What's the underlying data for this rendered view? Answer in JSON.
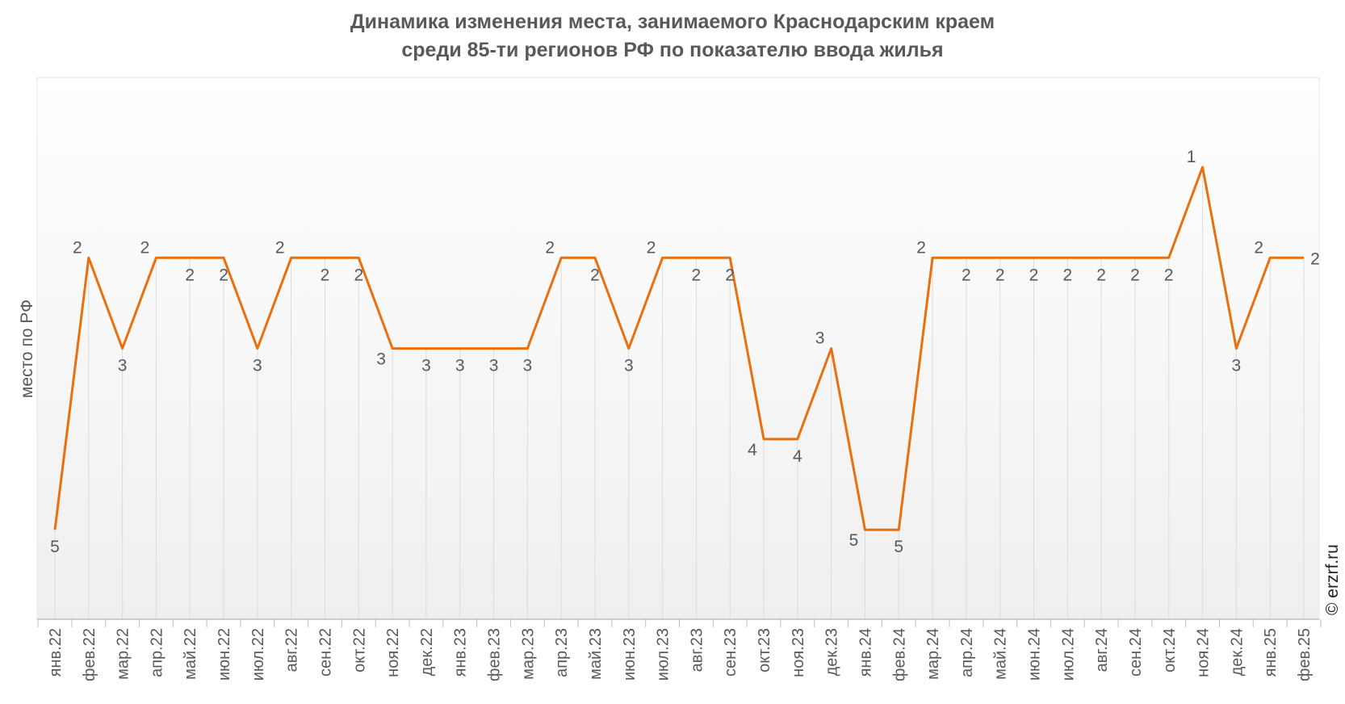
{
  "chart_data": {
    "type": "line",
    "title_line1": "Динамика изменения места, занимаемого Краснодарским краем",
    "title_line2": "среди 85-ти регионов РФ по показателю ввода жилья",
    "ylabel": "место по РФ",
    "xlabel": "",
    "ylim": [
      0.1,
      5.9
    ],
    "y_inverted": true,
    "grid": "vertical",
    "categories": [
      "янв.22",
      "фев.22",
      "мар.22",
      "апр.22",
      "май.22",
      "июн.22",
      "июл.22",
      "авг.22",
      "сен.22",
      "окт.22",
      "ноя.22",
      "дек.22",
      "янв.23",
      "фев.23",
      "мар.23",
      "апр.23",
      "май.23",
      "июн.23",
      "июл.23",
      "авг.23",
      "сен.23",
      "окт.23",
      "ноя.23",
      "дек.23",
      "янв.24",
      "фев.24",
      "мар.24",
      "апр.24",
      "май.24",
      "июн.24",
      "июл.24",
      "авг.24",
      "сен.24",
      "окт.24",
      "ноя.24",
      "дек.24",
      "янв.25",
      "фев.25"
    ],
    "series": [
      {
        "name": "место по РФ",
        "color": "#e8700e",
        "values": [
          5,
          2,
          3,
          2,
          2,
          2,
          3,
          2,
          2,
          2,
          3,
          3,
          3,
          3,
          3,
          2,
          2,
          3,
          2,
          2,
          2,
          4,
          4,
          3,
          5,
          5,
          2,
          2,
          2,
          2,
          2,
          2,
          2,
          2,
          1,
          3,
          2,
          2
        ]
      }
    ],
    "watermark": "© erzrf.ru"
  }
}
